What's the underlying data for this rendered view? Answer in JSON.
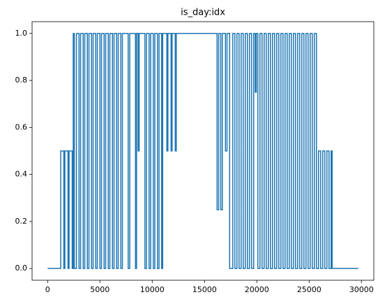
{
  "chart_data": {
    "type": "line",
    "title": "is_day:idx",
    "color": "#1f77b4",
    "x": [
      0,
      1250,
      1250,
      1550,
      1550,
      1650,
      1650,
      1950,
      1950,
      2050,
      2050,
      2350,
      2350,
      2450,
      2450,
      2550,
      2550,
      2750,
      2750,
      3000,
      3000,
      3150,
      3150,
      3400,
      3400,
      3550,
      3550,
      3800,
      3800,
      3950,
      3950,
      4200,
      4200,
      4350,
      4350,
      4600,
      4600,
      4750,
      4750,
      5000,
      5000,
      5150,
      5150,
      5400,
      5400,
      5550,
      5550,
      5800,
      5800,
      5950,
      5950,
      6200,
      6200,
      6350,
      6350,
      6600,
      6600,
      6750,
      6750,
      7000,
      7000,
      7150,
      7150,
      7700,
      7700,
      7850,
      7850,
      8400,
      8400,
      8500,
      8500,
      8650,
      8650,
      8750,
      8750,
      9300,
      9300,
      9450,
      9450,
      9700,
      9700,
      9850,
      9850,
      10100,
      10100,
      10250,
      10250,
      10500,
      10500,
      10650,
      10650,
      10900,
      10900,
      11000,
      11000,
      11400,
      11400,
      11500,
      11500,
      11800,
      11800,
      11900,
      11900,
      12200,
      12200,
      12300,
      12300,
      16200,
      16200,
      16350,
      16350,
      16550,
      16550,
      16700,
      16700,
      17000,
      17000,
      17150,
      17150,
      17400,
      17400,
      17700,
      17700,
      17900,
      17900,
      18100,
      18100,
      18300,
      18300,
      18500,
      18500,
      18700,
      18700,
      18900,
      18900,
      19100,
      19100,
      19300,
      19300,
      19500,
      19500,
      19700,
      19700,
      19850,
      19850,
      19950,
      19950,
      20100,
      20100,
      20300,
      20300,
      20500,
      20500,
      20700,
      20700,
      20900,
      20900,
      21100,
      21100,
      21300,
      21300,
      21500,
      21500,
      21700,
      21700,
      21900,
      21900,
      22100,
      22100,
      22300,
      22300,
      22500,
      22500,
      22700,
      22700,
      22900,
      22900,
      23100,
      23100,
      23300,
      23300,
      23500,
      23500,
      23700,
      23700,
      23900,
      23900,
      24100,
      24100,
      24300,
      24300,
      24500,
      24500,
      24700,
      24700,
      24900,
      24900,
      25100,
      25100,
      25300,
      25300,
      25500,
      25500,
      25700,
      25700,
      25900,
      25900,
      26100,
      26100,
      26300,
      26300,
      26500,
      26500,
      26700,
      26700,
      26900,
      26900,
      27100,
      27100,
      27200,
      27200,
      29700
    ],
    "values": [
      0,
      0,
      0.5,
      0.5,
      0,
      0,
      0.5,
      0.5,
      0,
      0,
      0.5,
      0.5,
      0,
      0,
      1,
      1,
      0,
      0,
      1,
      1,
      0,
      0,
      1,
      1,
      0,
      0,
      1,
      1,
      0,
      0,
      1,
      1,
      0,
      0,
      1,
      1,
      0,
      0,
      1,
      1,
      0,
      0,
      1,
      1,
      0,
      0,
      1,
      1,
      0,
      0,
      1,
      1,
      0,
      0,
      1,
      1,
      0,
      0,
      1,
      1,
      0,
      0,
      1,
      1,
      0,
      0,
      1,
      1,
      0,
      0,
      1,
      1,
      0.5,
      0.5,
      1,
      1,
      0,
      0,
      1,
      1,
      0,
      0,
      1,
      1,
      0,
      0,
      1,
      1,
      0,
      0,
      1,
      1,
      0,
      0,
      1,
      1,
      0.5,
      0.5,
      1,
      1,
      0.5,
      0.5,
      1,
      1,
      0.5,
      0.5,
      1,
      1,
      0.25,
      0.25,
      1,
      1,
      0.25,
      0.25,
      1,
      1,
      0.5,
      0.5,
      1,
      1,
      0,
      0,
      1,
      1,
      0,
      0,
      1,
      1,
      0,
      0,
      1,
      1,
      0,
      0,
      1,
      1,
      0,
      0,
      1,
      1,
      0,
      0,
      1,
      1,
      0.75,
      0.75,
      1,
      1,
      0,
      0,
      1,
      1,
      0,
      0,
      1,
      1,
      0,
      0,
      1,
      1,
      0,
      0,
      1,
      1,
      0,
      0,
      1,
      1,
      0,
      0,
      1,
      1,
      0,
      0,
      1,
      1,
      0,
      0,
      1,
      1,
      0,
      0,
      1,
      1,
      0,
      0,
      1,
      1,
      0,
      0,
      1,
      1,
      0,
      0,
      1,
      1,
      0,
      0,
      1,
      1,
      0,
      0,
      1,
      1,
      0,
      0,
      0.5,
      0.5,
      0,
      0,
      0.5,
      0.5,
      0,
      0,
      0.5,
      0.5,
      0,
      0,
      0.5,
      0.5,
      0,
      0
    ],
    "xlim": [
      -1485,
      31185
    ],
    "xticks": [
      0,
      5000,
      10000,
      15000,
      20000,
      25000,
      30000
    ],
    "ylim": [
      -0.05,
      1.05
    ],
    "yticks": [
      {
        "value": 0,
        "label": "0.0"
      },
      {
        "value": 0.2,
        "label": "0.2"
      },
      {
        "value": 0.4,
        "label": "0.4"
      },
      {
        "value": 0.6,
        "label": "0.6"
      },
      {
        "value": 0.8,
        "label": "0.8"
      },
      {
        "value": 1,
        "label": "1.0"
      }
    ]
  }
}
